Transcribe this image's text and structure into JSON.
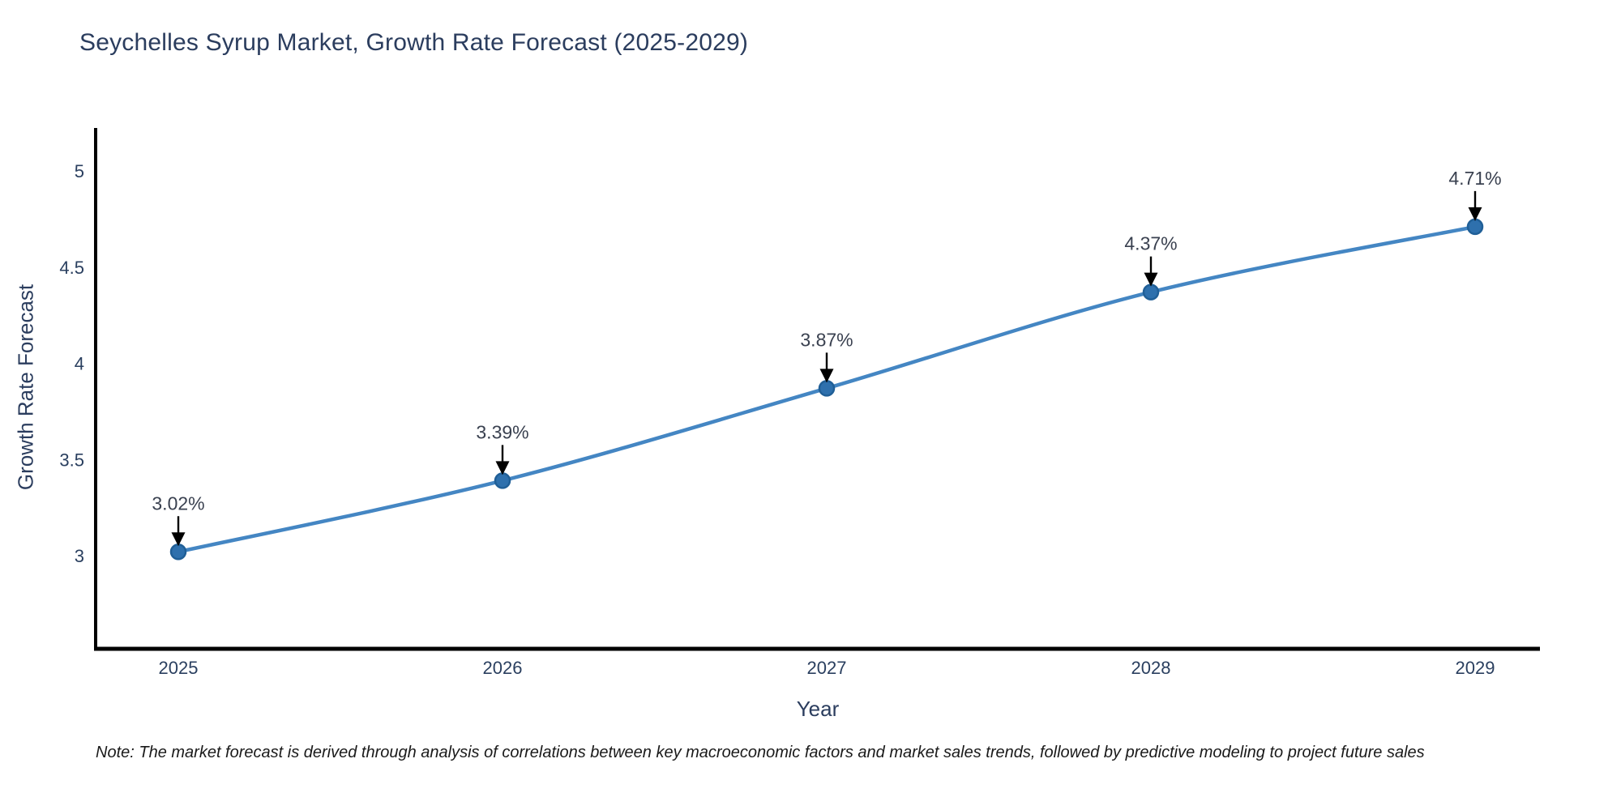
{
  "title": "Seychelles Syrup Market, Growth Rate Forecast (2025-2029)",
  "note": "Note: The market forecast is derived through analysis of correlations between key macroeconomic factors and market sales trends, followed by predictive modeling to project future sales",
  "chart_data": {
    "type": "line",
    "title": "Seychelles Syrup Market, Growth Rate Forecast (2025-2029)",
    "xlabel": "Year",
    "ylabel": "Growth Rate Forecast",
    "categories": [
      "2025",
      "2026",
      "2027",
      "2028",
      "2029"
    ],
    "x": [
      2025,
      2026,
      2027,
      2028,
      2029
    ],
    "values": [
      3.02,
      3.39,
      3.87,
      4.37,
      4.71
    ],
    "point_labels": [
      "3.02%",
      "3.39%",
      "3.87%",
      "4.37%",
      "4.71%"
    ],
    "yticks": [
      3,
      3.5,
      4,
      4.5,
      5
    ],
    "ylim": [
      2.5,
      5.2
    ],
    "grid": false,
    "legend_position": "none",
    "line_shape": "spline",
    "annotation_style": "label-with-down-arrow",
    "colors": {
      "line": "#4486c3",
      "marker_fill": "#2e70ad",
      "marker_edge": "#205f97",
      "axis": "#000000",
      "axis_text": "#2a3f5f",
      "title_text": "#2b3d5e",
      "annotation_text": "#3a4150",
      "arrow": "#000000",
      "background": "#ffffff"
    }
  }
}
